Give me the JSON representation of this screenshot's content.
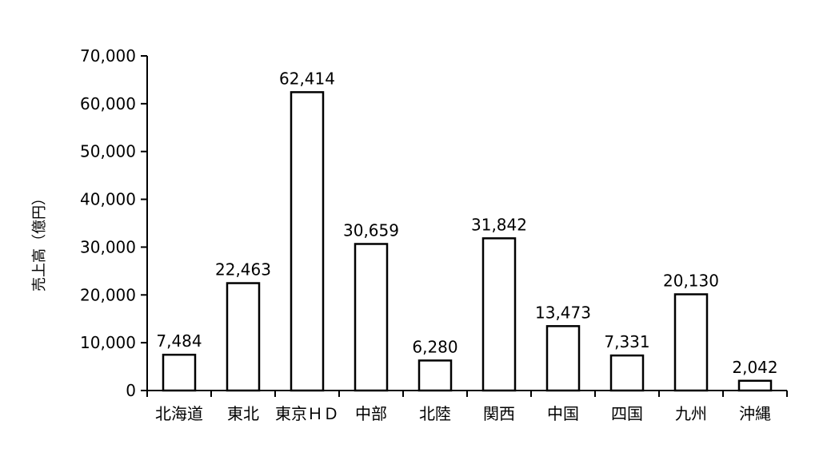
{
  "chart_data": {
    "type": "bar",
    "categories": [
      "北海道",
      "東北",
      "東京ＨＤ",
      "中部",
      "北陸",
      "関西",
      "中国",
      "四国",
      "九州",
      "沖縄"
    ],
    "values": [
      7484,
      22463,
      62414,
      30659,
      6280,
      31842,
      13473,
      7331,
      20130,
      2042
    ],
    "data_labels": [
      "7,484",
      "22,463",
      "62,414",
      "30,659",
      "6,280",
      "31,842",
      "13,473",
      "7,331",
      "20,130",
      "2,042"
    ],
    "ylabel": "売上高（億円）",
    "xlabel": "",
    "title": "",
    "ylim": [
      0,
      70000
    ],
    "yticks": [
      0,
      10000,
      20000,
      30000,
      40000,
      50000,
      60000,
      70000
    ],
    "ytick_labels": [
      "0",
      "10,000",
      "20,000",
      "30,000",
      "40,000",
      "50,000",
      "60,000",
      "70,000"
    ],
    "grid": false,
    "legend": "none",
    "bar_fill": "#ffffff",
    "bar_stroke": "#000000"
  }
}
